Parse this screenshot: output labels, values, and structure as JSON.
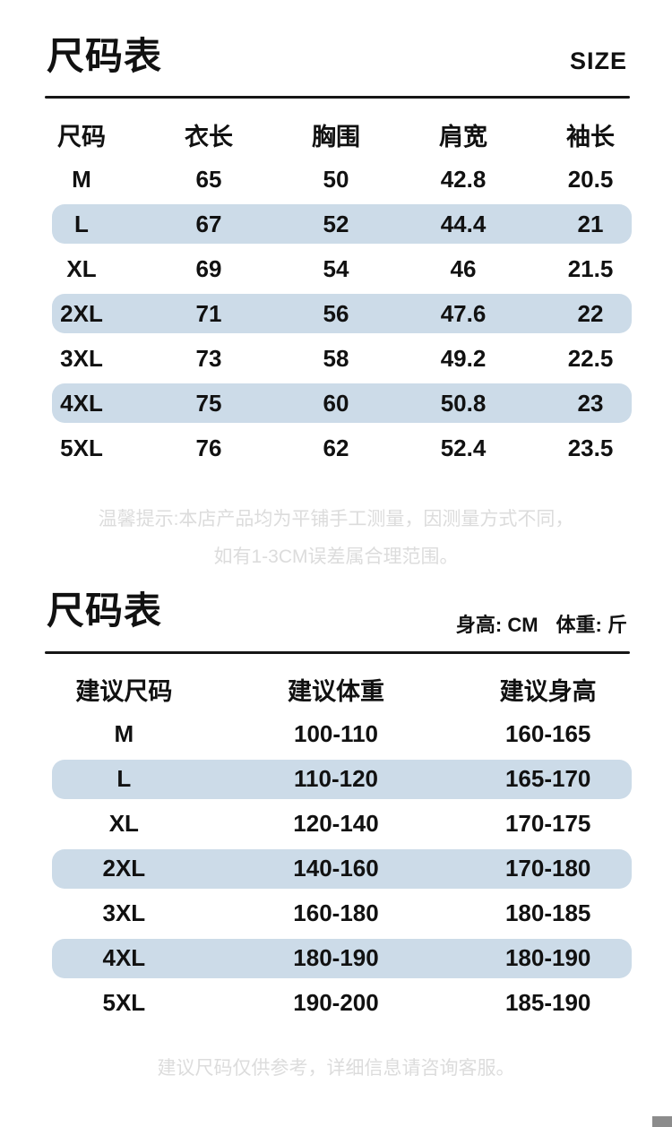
{
  "colors": {
    "highlight_row": "#ccdbe8",
    "divider": "#161616",
    "note_text": "#dcdcdc",
    "corner_marker": "#8c8c8c"
  },
  "section_size_chart": {
    "title": "尺码表",
    "subtitle": "SIZE",
    "table": {
      "headers": [
        "尺码",
        "衣长",
        "胸围",
        "肩宽",
        "袖长"
      ],
      "rows": [
        {
          "highlight": false,
          "cells": [
            "M",
            "65",
            "50",
            "42.8",
            "20.5"
          ]
        },
        {
          "highlight": true,
          "cells": [
            "L",
            "67",
            "52",
            "44.4",
            "21"
          ]
        },
        {
          "highlight": false,
          "cells": [
            "XL",
            "69",
            "54",
            "46",
            "21.5"
          ]
        },
        {
          "highlight": true,
          "cells": [
            "2XL",
            "71",
            "56",
            "47.6",
            "22"
          ]
        },
        {
          "highlight": false,
          "cells": [
            "3XL",
            "73",
            "58",
            "49.2",
            "22.5"
          ]
        },
        {
          "highlight": true,
          "cells": [
            "4XL",
            "75",
            "60",
            "50.8",
            "23"
          ]
        },
        {
          "highlight": false,
          "cells": [
            "5XL",
            "76",
            "62",
            "52.4",
            "23.5"
          ]
        }
      ]
    },
    "note_line1": "温馨提示:本店产品均为平铺手工测量，因测量方式不同，",
    "note_line2": "如有1-3CM误差属合理范围。"
  },
  "section_recommend_chart": {
    "title": "尺码表",
    "unit_height_label": "身高: CM",
    "unit_weight_label": "体重: 斤",
    "table": {
      "headers": [
        "建议尺码",
        "建议体重",
        "建议身高"
      ],
      "rows": [
        {
          "highlight": false,
          "cells": [
            "M",
            "100-110",
            "160-165"
          ]
        },
        {
          "highlight": true,
          "cells": [
            "L",
            "110-120",
            "165-170"
          ]
        },
        {
          "highlight": false,
          "cells": [
            "XL",
            "120-140",
            "170-175"
          ]
        },
        {
          "highlight": true,
          "cells": [
            "2XL",
            "140-160",
            "170-180"
          ]
        },
        {
          "highlight": false,
          "cells": [
            "3XL",
            "160-180",
            "180-185"
          ]
        },
        {
          "highlight": true,
          "cells": [
            "4XL",
            "180-190",
            "180-190"
          ]
        },
        {
          "highlight": false,
          "cells": [
            "5XL",
            "190-200",
            "185-190"
          ]
        }
      ]
    },
    "footer_note": "建议尺码仅供参考，详细信息请咨询客服。"
  }
}
